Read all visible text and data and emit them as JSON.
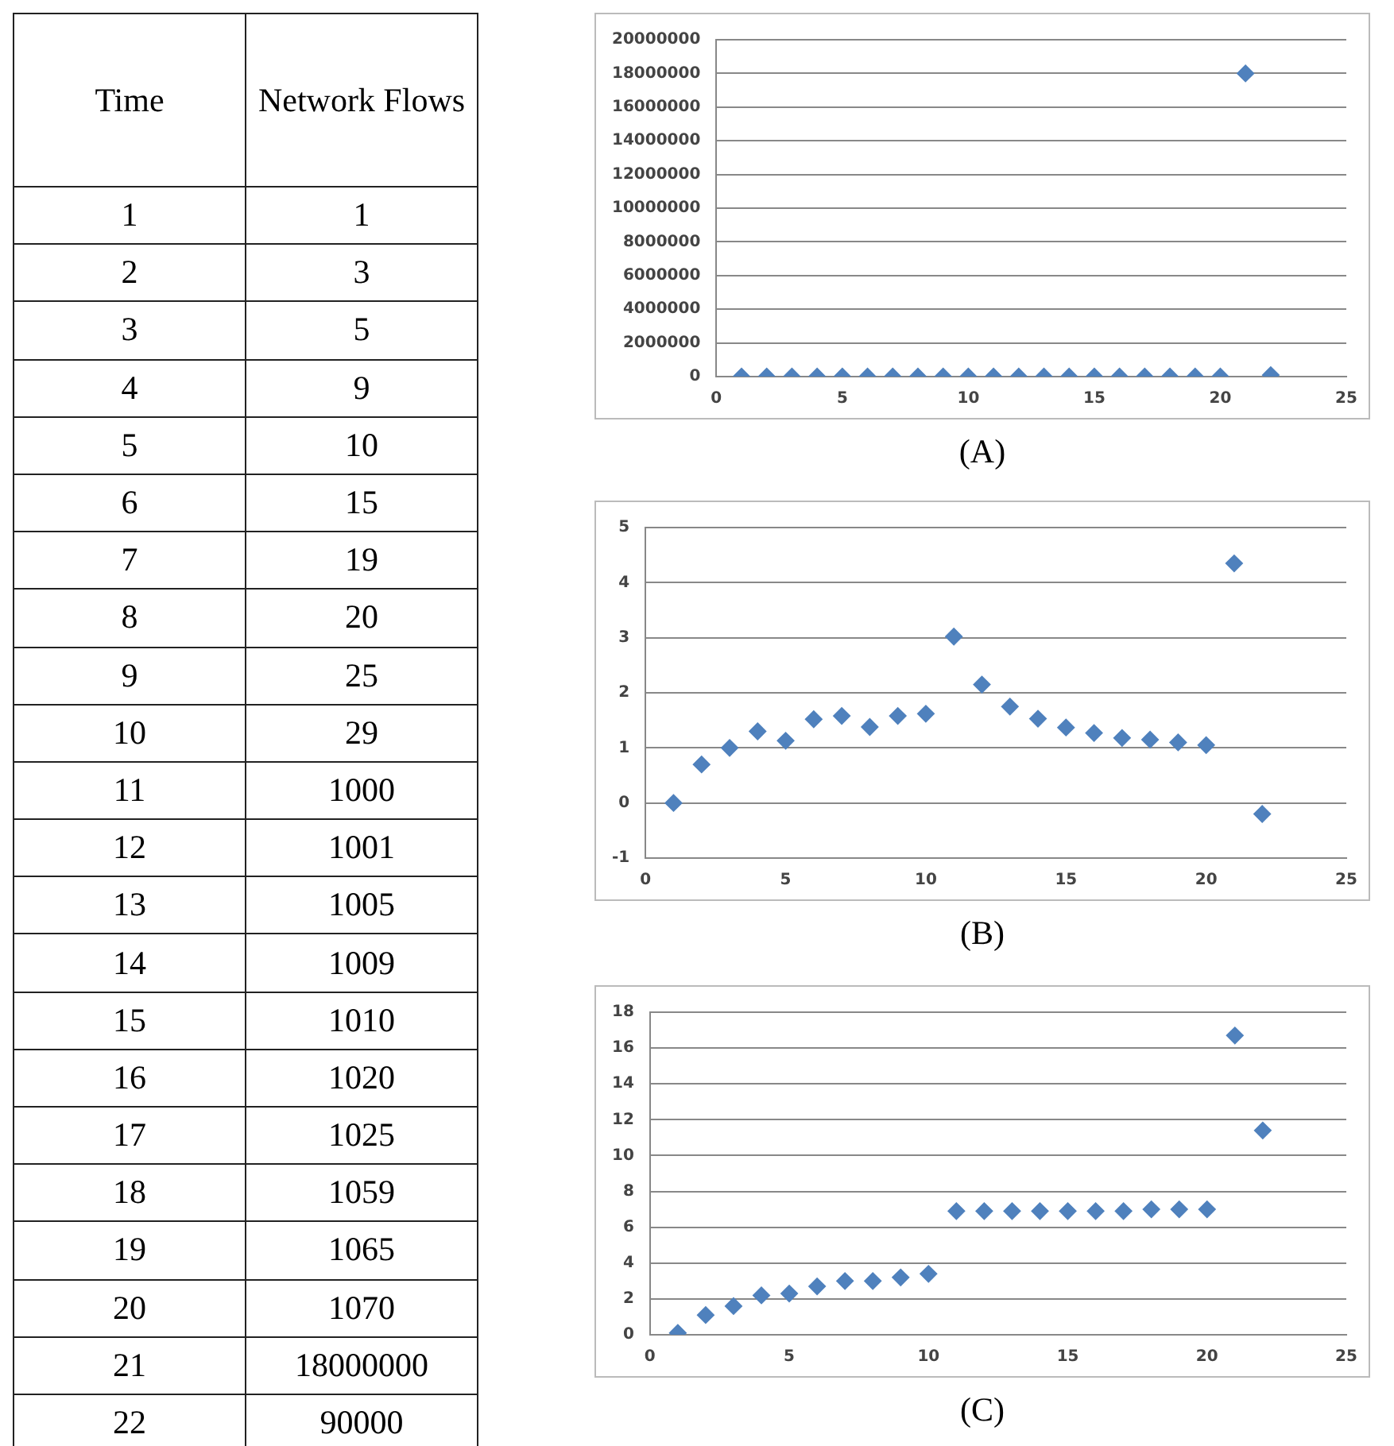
{
  "chart_data": [
    {
      "type": "heatmap",
      "ylabel": "Time",
      "categories": [
        "Network Flows"
      ],
      "data_labels": true,
      "y_categories": [
        "1",
        "2",
        "3",
        "4",
        "5",
        "6",
        "7",
        "8",
        "9",
        "10",
        "11",
        "12",
        "13",
        "14",
        "15",
        "16",
        "17",
        "18",
        "19",
        "20",
        "21",
        "22"
      ],
      "cells": [
        [
          1
        ],
        [
          3
        ],
        [
          5
        ],
        [
          9
        ],
        [
          10
        ],
        [
          15
        ],
        [
          19
        ],
        [
          20
        ],
        [
          25
        ],
        [
          29
        ],
        [
          1000
        ],
        [
          1001
        ],
        [
          1005
        ],
        [
          1009
        ],
        [
          1010
        ],
        [
          1020
        ],
        [
          1025
        ],
        [
          1059
        ],
        [
          1065
        ],
        [
          1070
        ],
        [
          18000000
        ],
        [
          90000
        ]
      ]
    },
    {
      "type": "scatter",
      "annotations": [
        "(A)"
      ],
      "marker": "diamond",
      "grid": "y",
      "legend": false,
      "x": [
        1,
        2,
        3,
        4,
        5,
        6,
        7,
        8,
        9,
        10,
        11,
        12,
        13,
        14,
        15,
        16,
        17,
        18,
        19,
        20,
        21,
        22
      ],
      "series": [
        {
          "color": "#4f81bd",
          "values": [
            1,
            3,
            5,
            9,
            10,
            15,
            19,
            20,
            25,
            29,
            1000,
            1001,
            1005,
            1009,
            1010,
            1020,
            1025,
            1059,
            1065,
            1070,
            18000000,
            90000
          ]
        }
      ],
      "xlim": [
        0,
        25
      ],
      "xticks": [
        0,
        5,
        10,
        15,
        20,
        25
      ],
      "ylim": [
        0,
        20000000
      ],
      "yticks": [
        0,
        2000000,
        4000000,
        6000000,
        8000000,
        10000000,
        12000000,
        14000000,
        16000000,
        18000000,
        20000000
      ]
    },
    {
      "type": "scatter",
      "annotations": [
        "(B)"
      ],
      "marker": "diamond",
      "grid": "y",
      "legend": false,
      "x": [
        1,
        2,
        3,
        4,
        5,
        6,
        7,
        8,
        9,
        10,
        11,
        12,
        13,
        14,
        15,
        16,
        17,
        18,
        19,
        20,
        21,
        22
      ],
      "series": [
        {
          "color": "#4f81bd",
          "values": [
            0,
            0.7,
            1.0,
            1.3,
            1.13,
            1.52,
            1.58,
            1.38,
            1.58,
            1.62,
            3.02,
            2.15,
            1.75,
            1.53,
            1.37,
            1.27,
            1.18,
            1.15,
            1.1,
            1.05,
            4.35,
            -0.2
          ]
        }
      ],
      "xlim": [
        0,
        25
      ],
      "xticks": [
        0,
        5,
        10,
        15,
        20,
        25
      ],
      "ylim": [
        -1,
        5
      ],
      "yticks": [
        -1,
        0,
        1,
        2,
        3,
        4,
        5
      ]
    },
    {
      "type": "scatter",
      "annotations": [
        "(C)"
      ],
      "marker": "diamond",
      "grid": "y",
      "legend": false,
      "x": [
        1,
        2,
        3,
        4,
        5,
        6,
        7,
        8,
        9,
        10,
        11,
        12,
        13,
        14,
        15,
        16,
        17,
        18,
        19,
        20,
        21,
        22
      ],
      "series": [
        {
          "color": "#4f81bd",
          "values": [
            0.1,
            1.1,
            1.6,
            2.2,
            2.3,
            2.7,
            3.0,
            3.0,
            3.2,
            3.4,
            6.9,
            6.9,
            6.9,
            6.9,
            6.9,
            6.9,
            6.9,
            7.0,
            7.0,
            7.0,
            16.7,
            11.4
          ]
        }
      ],
      "xlim": [
        0,
        25
      ],
      "xticks": [
        0,
        5,
        10,
        15,
        20,
        25
      ],
      "ylim": [
        0,
        18
      ],
      "yticks": [
        0,
        2,
        4,
        6,
        8,
        10,
        12,
        14,
        16,
        18
      ]
    }
  ]
}
